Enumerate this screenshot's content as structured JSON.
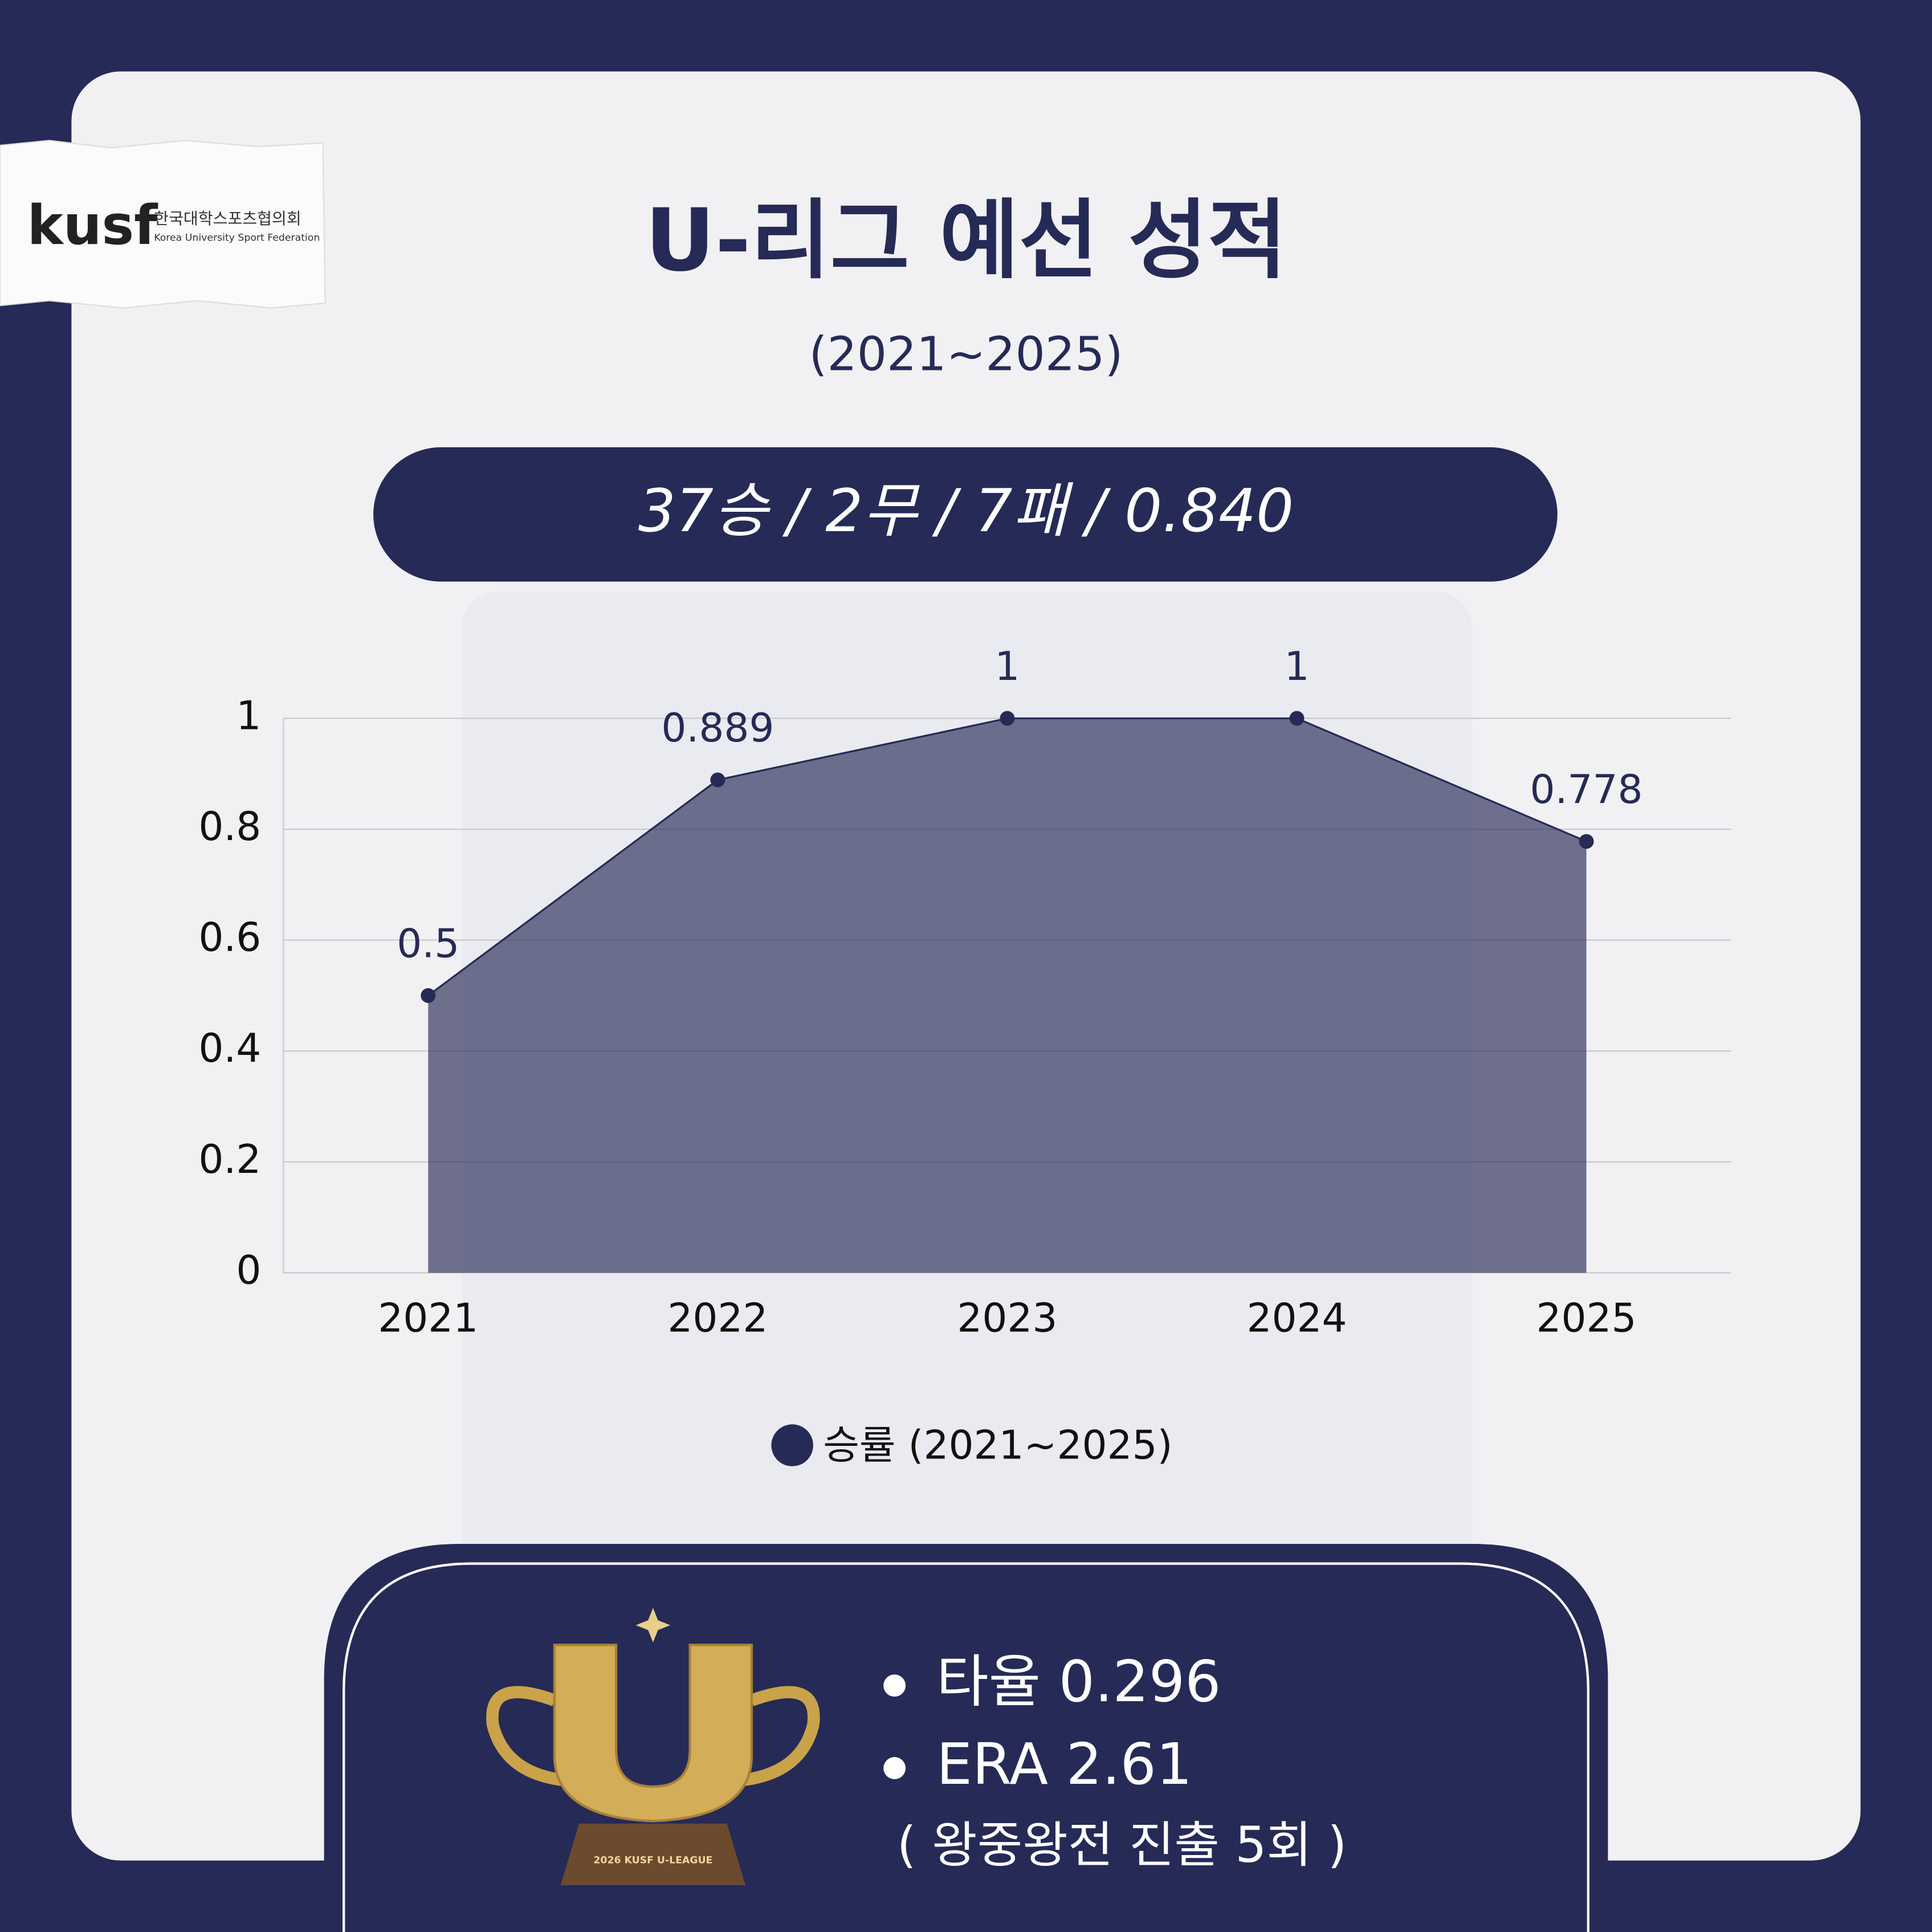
{
  "logo": {
    "mark": "kusf",
    "name_ko": "한국대학스포츠협의회",
    "name_en": "Korea University Sport Federation"
  },
  "header": {
    "title": "U-리그 예선 성적",
    "subtitle": "(2021~2025)"
  },
  "record": "37승 / 2무 / 7패 / 0.840",
  "chart_data": {
    "type": "area",
    "categories": [
      "2021",
      "2022",
      "2023",
      "2024",
      "2025"
    ],
    "series": [
      {
        "name": "승률 (2021~2025)",
        "color": "#262a56",
        "values": [
          0.5,
          0.889,
          1,
          1,
          0.778
        ]
      }
    ],
    "ylim": [
      0,
      1
    ],
    "yticks": [
      0,
      0.2,
      0.4,
      0.6,
      0.8,
      1
    ],
    "grid": true,
    "legend": "bottom"
  },
  "stats": {
    "items": [
      "타율 0.296",
      "ERA 2.61"
    ],
    "note": "( 왕중왕전 진출 5회 )",
    "trophy_label": "2026 KUSF U-LEAGUE"
  }
}
